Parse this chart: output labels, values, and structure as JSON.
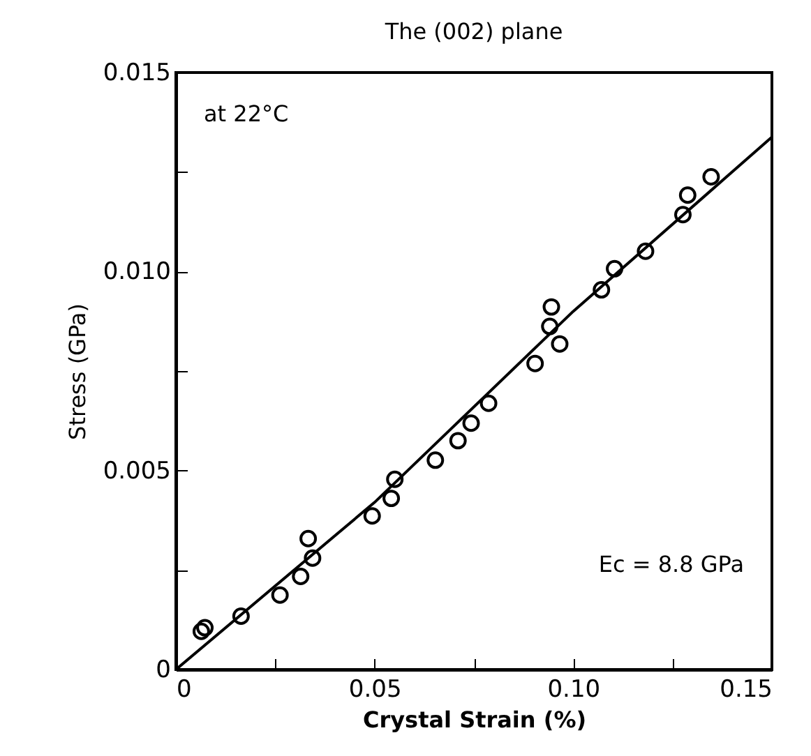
{
  "chart_data": {
    "type": "scatter",
    "title": "The (002) plane",
    "xlabel": "Crystal Strain (%)",
    "ylabel": "Stress (GPa)",
    "annotations": [
      "at 22°C",
      "Ec = 8.8 GPa"
    ],
    "xlim": [
      0,
      0.15
    ],
    "ylim": [
      0,
      0.015
    ],
    "xticks": [
      0,
      {
        "value": 0.025,
        "label": null
      },
      "0.05",
      {
        "value": 0.075,
        "label": null
      },
      {
        "value": 0.1,
        "label": "0.10"
      },
      {
        "value": 0.125,
        "label": null
      },
      0.15
    ],
    "yticks": [
      0,
      {
        "value": 0.0025,
        "label": null
      },
      0.005,
      {
        "value": 0.0075,
        "label": null
      },
      {
        "value": 0.01,
        "label": "0.010"
      },
      {
        "value": 0.0125,
        "label": null
      },
      0.015
    ],
    "grid": false,
    "series": [
      {
        "marker": "circle",
        "color": "#000000",
        "x": [
          0.0064,
          0.0073,
          0.0164,
          0.0262,
          0.0314,
          0.0333,
          0.0344,
          0.0494,
          0.0542,
          0.0551,
          0.0653,
          0.071,
          0.0743,
          0.0787,
          0.0904,
          0.0941,
          0.0945,
          0.0966,
          0.1071,
          0.1104,
          0.1182,
          0.1276,
          0.1288,
          0.1347
        ],
        "values": [
          0.00096,
          0.00105,
          0.00134,
          0.00187,
          0.00234,
          0.00329,
          0.0028,
          0.00386,
          0.0043,
          0.00478,
          0.00526,
          0.00575,
          0.00619,
          0.00669,
          0.00769,
          0.00862,
          0.00911,
          0.00818,
          0.00954,
          0.01007,
          0.01051,
          0.01143,
          0.01192,
          0.01238
        ]
      },
      {
        "type": "line",
        "color": "#000000",
        "line_style": "solid",
        "x": [
          0,
          0.05,
          0.1,
          0.15
        ],
        "values": [
          0,
          0.0042,
          0.009,
          0.01338
        ]
      }
    ]
  }
}
